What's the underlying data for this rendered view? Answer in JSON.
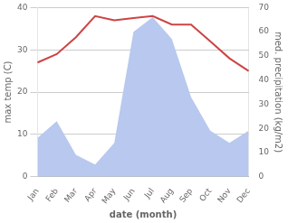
{
  "chart_data": {
    "type": "line",
    "categories": [
      "Jan",
      "Feb",
      "Mar",
      "Apr",
      "May",
      "Jun",
      "Jul",
      "Aug",
      "Sep",
      "Oct",
      "Nov",
      "Dec"
    ],
    "series": [
      {
        "type": "area",
        "color": "#b8c8ee",
        "axis": "y2",
        "values": [
          16,
          23,
          9,
          5,
          14,
          60,
          66,
          57,
          33,
          19,
          14,
          19
        ]
      },
      {
        "type": "line",
        "color": "#cc4444",
        "values": [
          27,
          29,
          33,
          38,
          37,
          37.5,
          38,
          36,
          36,
          32,
          28,
          25
        ]
      }
    ],
    "x_label": "date (month)",
    "y_label": "max temp (C)",
    "y2_label": "med. precipitation (kg/m2)",
    "ylim": [
      0,
      40
    ],
    "yticks": [
      0,
      10,
      20,
      30,
      40
    ],
    "y2lim": [
      0,
      70
    ],
    "y2ticks": [
      0,
      10,
      20,
      30,
      40,
      50,
      60,
      70
    ],
    "grid": true
  }
}
